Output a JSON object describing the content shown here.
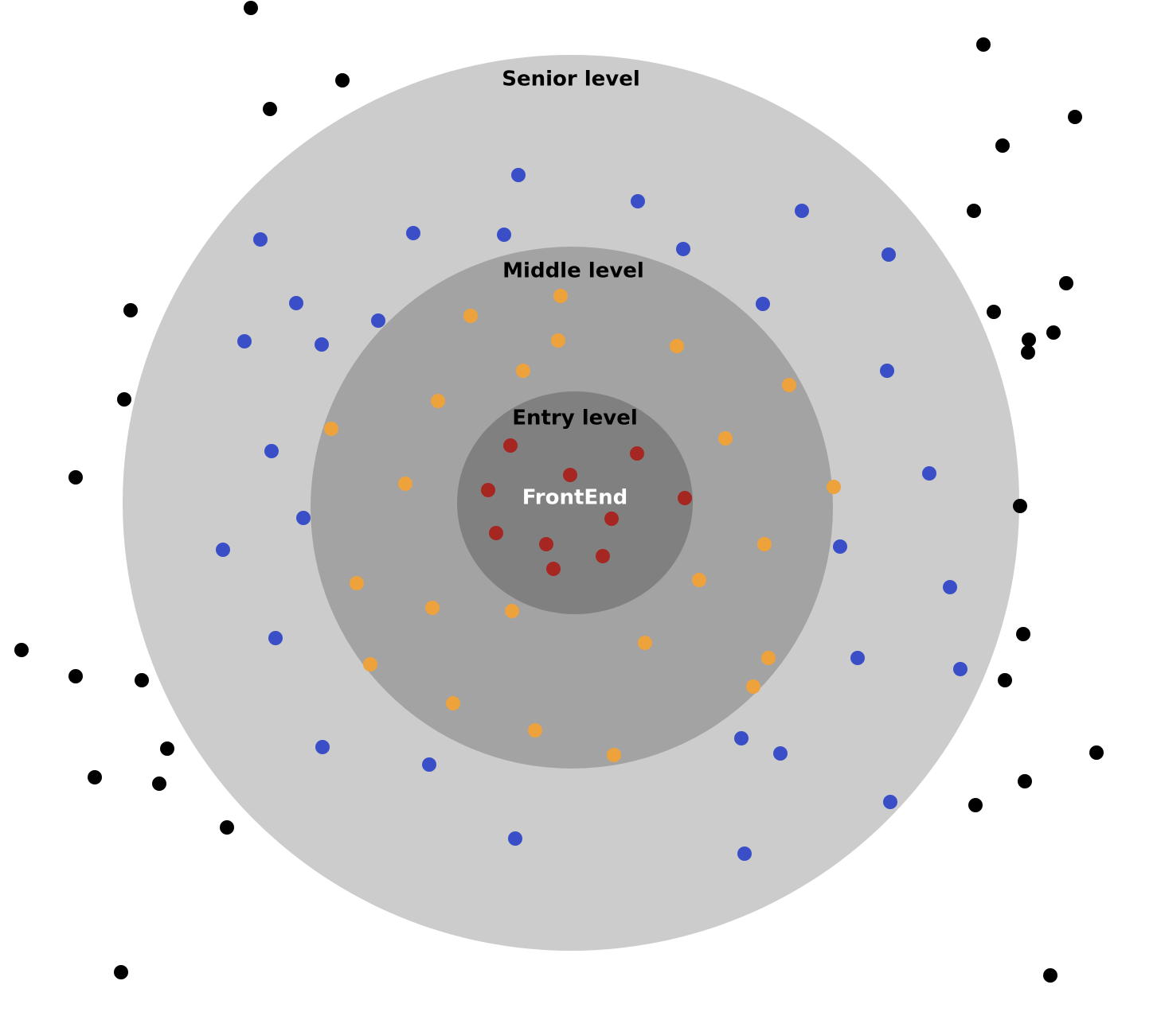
{
  "diagram": {
    "labels": {
      "senior": "Senior level",
      "middle": "Middle level",
      "entry": "Entry level",
      "center": "FrontEnd"
    },
    "colors": {
      "senior_ring": "#cccccc",
      "middle_ring": "#a3a3a3",
      "entry_ring": "#808080",
      "label_dark": "#000000",
      "label_light": "#ffffff",
      "dot_black": "#000000",
      "dot_blue": "#3a4ec8",
      "dot_orange": "#eea23c",
      "dot_red": "#a62622"
    }
  }
}
